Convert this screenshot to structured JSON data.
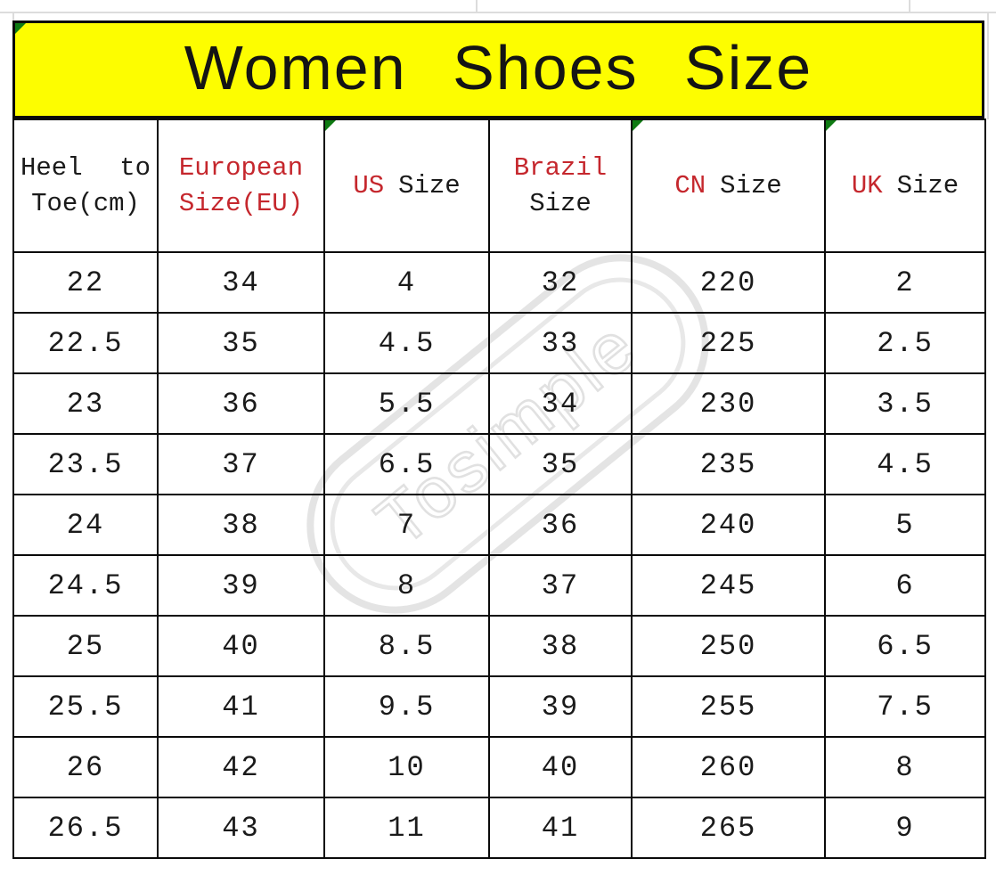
{
  "title": {
    "text": "Women Shoes Size"
  },
  "colors": {
    "accent_red": "#c5272d",
    "banner_yellow": "#fdfd00",
    "marker_green": "#0e7a12",
    "watermark_gray": "#e2e2e2"
  },
  "watermark": {
    "text": "Tosimple"
  },
  "table": {
    "headers": [
      {
        "id": "header-heel-to-toe",
        "justify": true,
        "marker": false,
        "lines": [
          [
            {
              "t": "Heel",
              "c": "k"
            },
            {
              "t": "to",
              "c": "k"
            }
          ],
          [
            {
              "t": "Toe(cm)",
              "c": "k"
            }
          ]
        ]
      },
      {
        "id": "header-european-size",
        "justify": false,
        "marker": false,
        "lines": [
          [
            {
              "t": "European",
              "c": "r"
            }
          ],
          [
            {
              "t": "Size(EU)",
              "c": "r"
            }
          ]
        ]
      },
      {
        "id": "header-us-size",
        "justify": false,
        "marker": true,
        "lines": [
          [
            {
              "t": "US",
              "c": "r"
            },
            {
              "t": "Size",
              "c": "k"
            }
          ]
        ]
      },
      {
        "id": "header-brazil-size",
        "justify": false,
        "marker": false,
        "lines": [
          [
            {
              "t": "Brazil",
              "c": "r"
            }
          ],
          [
            {
              "t": "Size",
              "c": "k"
            }
          ]
        ]
      },
      {
        "id": "header-cn-size",
        "justify": false,
        "marker": true,
        "lines": [
          [
            {
              "t": "CN",
              "c": "r"
            },
            {
              "t": "Size",
              "c": "k"
            }
          ]
        ]
      },
      {
        "id": "header-uk-size",
        "justify": false,
        "marker": true,
        "lines": [
          [
            {
              "t": "UK",
              "c": "r"
            },
            {
              "t": "Size",
              "c": "k"
            }
          ]
        ]
      }
    ],
    "red_column_index": 1,
    "rows": [
      [
        "22",
        "34",
        "4",
        "32",
        "220",
        "2"
      ],
      [
        "22.5",
        "35",
        "4.5",
        "33",
        "225",
        "2.5"
      ],
      [
        "23",
        "36",
        "5.5",
        "34",
        "230",
        "3.5"
      ],
      [
        "23.5",
        "37",
        "6.5",
        "35",
        "235",
        "4.5"
      ],
      [
        "24",
        "38",
        "7",
        "36",
        "240",
        "5"
      ],
      [
        "24.5",
        "39",
        "8",
        "37",
        "245",
        "6"
      ],
      [
        "25",
        "40",
        "8.5",
        "38",
        "250",
        "6.5"
      ],
      [
        "25.5",
        "41",
        "9.5",
        "39",
        "255",
        "7.5"
      ],
      [
        "26",
        "42",
        "10",
        "40",
        "260",
        "8"
      ],
      [
        "26.5",
        "43",
        "11",
        "41",
        "265",
        "9"
      ]
    ]
  }
}
